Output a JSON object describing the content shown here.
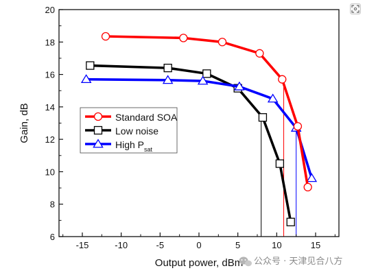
{
  "chart_data": {
    "type": "line",
    "xlabel": "Output power, dBm",
    "ylabel": "Gain, dB",
    "xlim": [
      -18,
      18
    ],
    "ylim": [
      6,
      20
    ],
    "xticks": [
      -15,
      -10,
      -5,
      0,
      5,
      10,
      15
    ],
    "yticks": [
      6,
      8,
      10,
      12,
      14,
      16,
      18,
      20
    ],
    "grid": false,
    "legend_position": "middle-left",
    "series": [
      {
        "name": "Standard SOA",
        "color": "#ff0000",
        "marker": "circle",
        "x": [
          -12,
          -2,
          3,
          7.8,
          10.7,
          12.7,
          14
        ],
        "y": [
          18.35,
          18.25,
          18.0,
          17.3,
          15.7,
          12.8,
          9.05
        ]
      },
      {
        "name": "Low noise",
        "color": "#000000",
        "marker": "square",
        "x": [
          -14,
          -4,
          1,
          5,
          8.2,
          10.4,
          11.8
        ],
        "y": [
          16.55,
          16.4,
          16.05,
          15.15,
          13.35,
          10.5,
          6.9
        ]
      },
      {
        "name_main": "High P",
        "name_sub": "sat",
        "color": "#0000ff",
        "marker": "triangle",
        "x": [
          -14.5,
          -4,
          0.5,
          5.2,
          9.5,
          12.5,
          14.5
        ],
        "y": [
          15.7,
          15.65,
          15.6,
          15.25,
          14.5,
          12.7,
          9.6
        ]
      }
    ],
    "reference_lines": [
      {
        "x": 8,
        "y": 13.3,
        "color": "#000000"
      },
      {
        "x": 10.9,
        "y": 15.7,
        "color": "#ff0000"
      },
      {
        "x": 12.5,
        "y": 12.7,
        "color": "#0000ff"
      }
    ]
  },
  "watermark": {
    "icon": "wechat-icon",
    "text": "公众号 · 天津见合八方"
  },
  "scan_button": {
    "icon": "scan-icon"
  }
}
